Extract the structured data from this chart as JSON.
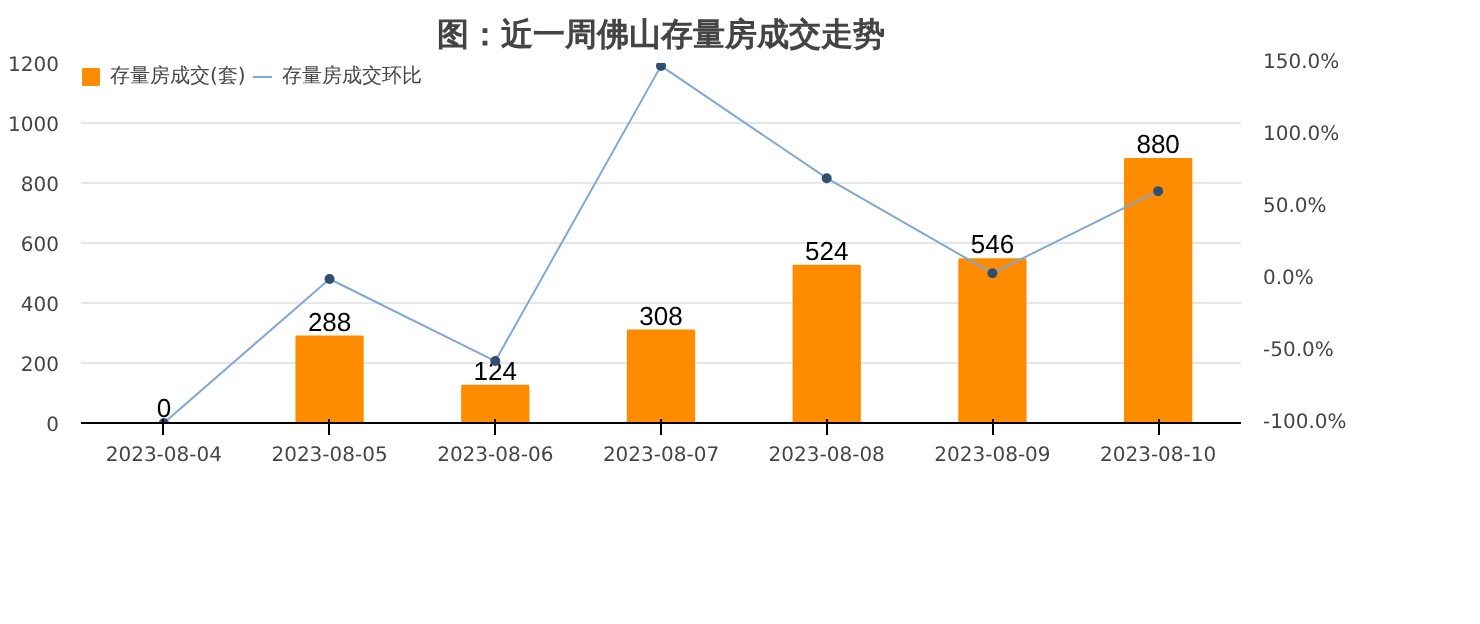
{
  "chart_data": {
    "type": "bar",
    "title": "图：近一周佛山存量房成交走势",
    "categories": [
      "2023-08-04",
      "2023-08-05",
      "2023-08-06",
      "2023-08-07",
      "2023-08-08",
      "2023-08-09",
      "2023-08-10"
    ],
    "series": [
      {
        "name": "存量房成交(套)",
        "color": "#ff8c00",
        "values": [
          0,
          288,
          124,
          308,
          524,
          546,
          880
        ],
        "value_labels": [
          "0",
          "288",
          "124",
          "308",
          "524",
          "546",
          "880"
        ]
      },
      {
        "name": "存量房成交环比",
        "type": "line",
        "axis": "y2",
        "color": "#7fa8d4",
        "marker": "circle",
        "values": [
          -100,
          0,
          -57,
          148,
          70,
          4,
          61
        ]
      }
    ],
    "ylim": [
      0,
      1200
    ],
    "yticks": [
      0,
      200,
      400,
      600,
      800,
      1000,
      1200
    ],
    "y2lim": [
      -100,
      150
    ],
    "y2ticks": [
      {
        "value": -100,
        "label": "-100.0%"
      },
      {
        "value": -50,
        "label": "-50.0%"
      },
      {
        "value": 0,
        "label": "0.0%"
      },
      {
        "value": 50,
        "label": "50.0%"
      },
      {
        "value": 100,
        "label": "100.0%"
      },
      {
        "value": 150,
        "label": "150.0%"
      }
    ],
    "grid": "y",
    "legend": "top left"
  }
}
